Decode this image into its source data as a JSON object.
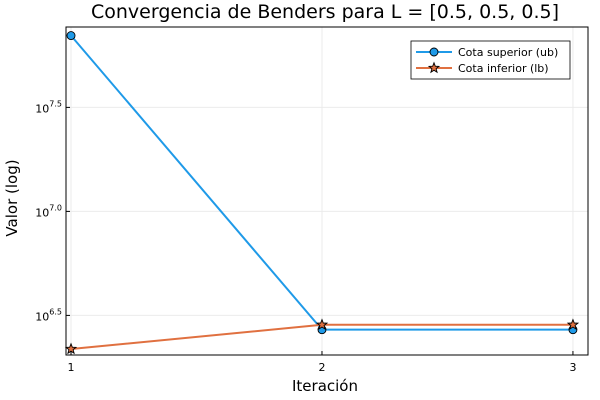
{
  "chart_data": {
    "type": "line",
    "title": "Convergencia de Benders para L = [0.5, 0.5, 0.5]",
    "xlabel": "Iteración",
    "ylabel": "Valor (log)",
    "yscale": "log10",
    "x": [
      1,
      2,
      3
    ],
    "xticks": [
      "1",
      "2",
      "3"
    ],
    "yticks": [
      {
        "base": "10",
        "exp": "6.5",
        "value": 3162278
      },
      {
        "base": "10",
        "exp": "7.0",
        "value": 10000000
      },
      {
        "base": "10",
        "exp": "7.5",
        "value": 31622777
      }
    ],
    "xlim": [
      0.98,
      3.06
    ],
    "ylim": [
      2040000,
      77000000
    ],
    "grid": true,
    "legend_position": "top-right",
    "series": [
      {
        "name": "Cota superior (ub)",
        "color": "#1f9ae8",
        "marker": "circle",
        "values": [
          70000000,
          2700000,
          2700000
        ]
      },
      {
        "name": "Cota inferior (lb)",
        "color": "#e07040",
        "marker": "star",
        "values": [
          2180000,
          2850000,
          2850000
        ]
      }
    ]
  }
}
